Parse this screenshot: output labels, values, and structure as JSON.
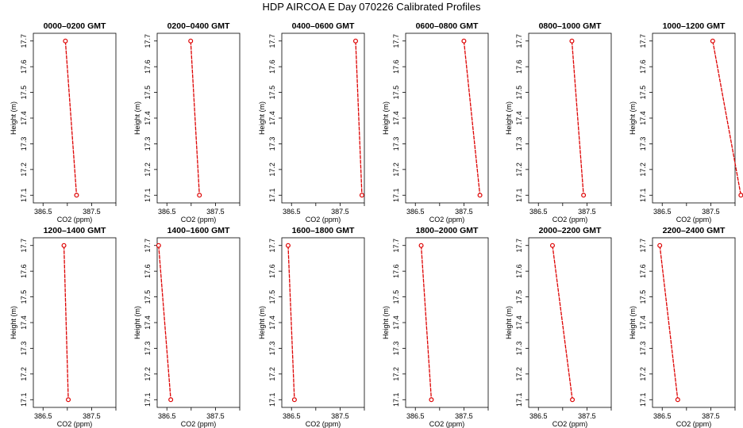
{
  "title": "HDP  AIRCOA E  Day 070226  Calibrated Profiles",
  "chart_data": {
    "type": "line",
    "xlabel": "CO2 (ppm)",
    "ylabel": "Height (m)",
    "xlim": [
      386.3,
      388.0
    ],
    "ylim": [
      17.07,
      17.73
    ],
    "xticks": [
      386.5,
      387.0,
      387.5,
      388.0
    ],
    "xtick_labels": [
      "386.5",
      "",
      "387.5",
      ""
    ],
    "yticks": [
      17.1,
      17.2,
      17.3,
      17.4,
      17.5,
      17.6,
      17.7
    ],
    "ytick_labels": [
      "17.1",
      "17.2",
      "17.3",
      "17.4",
      "17.5",
      "17.6",
      "17.7"
    ],
    "line_color": "#dd0000",
    "panels": [
      {
        "title": "0000–0200 GMT",
        "points": [
          {
            "co2": 386.96,
            "height": 17.7
          },
          {
            "co2": 387.19,
            "height": 17.1
          }
        ]
      },
      {
        "title": "0200–0400 GMT",
        "points": [
          {
            "co2": 386.99,
            "height": 17.7
          },
          {
            "co2": 387.17,
            "height": 17.1
          }
        ]
      },
      {
        "title": "0400–0600 GMT",
        "points": [
          {
            "co2": 387.82,
            "height": 17.7
          },
          {
            "co2": 387.95,
            "height": 17.1
          }
        ]
      },
      {
        "title": "0600–0800 GMT",
        "points": [
          {
            "co2": 387.5,
            "height": 17.7
          },
          {
            "co2": 387.83,
            "height": 17.1
          }
        ]
      },
      {
        "title": "0800–1000 GMT",
        "points": [
          {
            "co2": 387.19,
            "height": 17.7
          },
          {
            "co2": 387.43,
            "height": 17.1
          }
        ]
      },
      {
        "title": "1000–1200 GMT",
        "points": [
          {
            "co2": 387.54,
            "height": 17.7
          },
          {
            "co2": 388.12,
            "height": 17.1
          }
        ]
      },
      {
        "title": "1200–1400 GMT",
        "points": [
          {
            "co2": 386.93,
            "height": 17.7
          },
          {
            "co2": 387.02,
            "height": 17.1
          }
        ]
      },
      {
        "title": "1400–1600 GMT",
        "points": [
          {
            "co2": 386.33,
            "height": 17.7
          },
          {
            "co2": 386.58,
            "height": 17.1
          }
        ]
      },
      {
        "title": "1600–1800 GMT",
        "points": [
          {
            "co2": 386.43,
            "height": 17.7
          },
          {
            "co2": 386.56,
            "height": 17.1
          }
        ]
      },
      {
        "title": "1800–2000 GMT",
        "points": [
          {
            "co2": 386.62,
            "height": 17.7
          },
          {
            "co2": 386.83,
            "height": 17.1
          }
        ]
      },
      {
        "title": "2000–2200 GMT",
        "points": [
          {
            "co2": 386.79,
            "height": 17.7
          },
          {
            "co2": 387.2,
            "height": 17.1
          }
        ]
      },
      {
        "title": "2200–2400 GMT",
        "points": [
          {
            "co2": 386.45,
            "height": 17.7
          },
          {
            "co2": 386.82,
            "height": 17.1
          }
        ]
      }
    ]
  }
}
